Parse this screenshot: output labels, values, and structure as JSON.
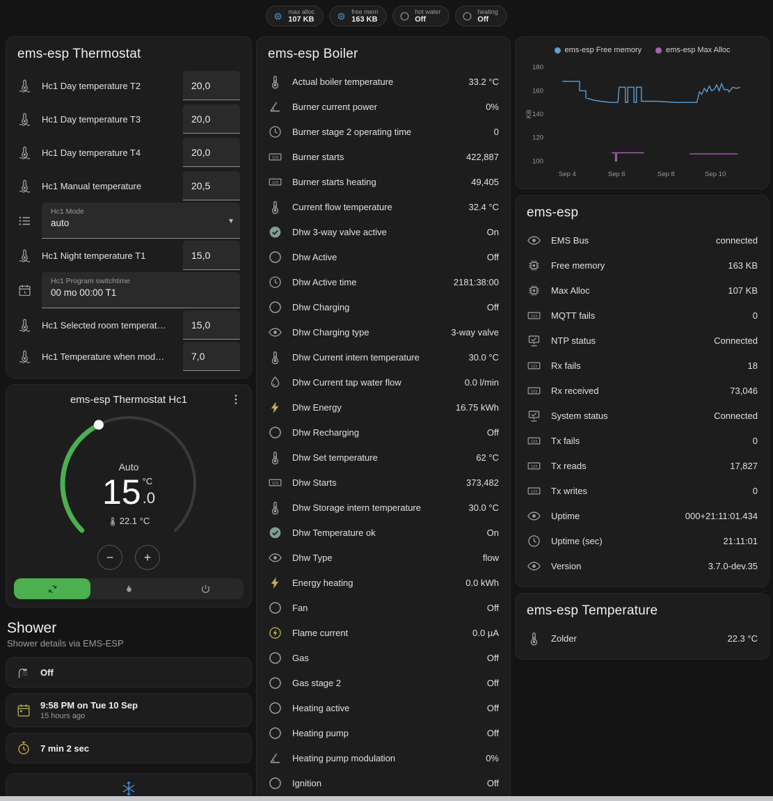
{
  "header": {
    "chips": [
      {
        "icon": "chip",
        "icon_color": "#4e93c8",
        "label": "max alloc",
        "value": "107 KB"
      },
      {
        "icon": "chip",
        "icon_color": "#4e93c8",
        "label": "free mem",
        "value": "163 KB"
      },
      {
        "icon": "circle",
        "icon_color": "#9da0a2",
        "label": "hot water",
        "value": "Off"
      },
      {
        "icon": "circle",
        "icon_color": "#9da0a2",
        "label": "heating",
        "value": "Off"
      }
    ]
  },
  "thermostat": {
    "title": "ems-esp Thermostat",
    "rows": [
      {
        "icon": "thermometer-water",
        "label": "Hc1 Day temperature T2",
        "value": "20,0"
      },
      {
        "icon": "thermometer-water",
        "label": "Hc1 Day temperature T3",
        "value": "20,0"
      },
      {
        "icon": "thermometer-water",
        "label": "Hc1 Day temperature T4",
        "value": "20,0"
      },
      {
        "icon": "thermometer-water",
        "label": "Hc1 Manual temperature",
        "value": "20,5"
      },
      {
        "icon": "list",
        "label": "Hc1 Mode",
        "value": "auto"
      },
      {
        "icon": "thermometer-water",
        "label": "Hc1 Night temperature T1",
        "value": "15,0"
      },
      {
        "icon": "calendar-clock",
        "label": "Hc1 Program switchtime",
        "value": "00 mo 00:00 T1"
      },
      {
        "icon": "thermometer-water",
        "label": "Hc1 Selected room temperat…",
        "value": "15,0"
      },
      {
        "icon": "thermometer-water",
        "label": "Hc1 Temperature when mod…",
        "value": "7,0"
      }
    ]
  },
  "thermostat_hc1": {
    "title": "ems-esp Thermostat Hc1",
    "mode": "Auto",
    "target_int": "15",
    "target_dec": ".0",
    "unit": "°C",
    "current": "22.1 °C"
  },
  "shower": {
    "heading": "Shower",
    "subtitle": "Shower details via EMS-ESP",
    "cards": [
      {
        "icon": "shower",
        "icon_color": "#9da0a2",
        "primary": "Off",
        "secondary": ""
      },
      {
        "icon": "calendar",
        "icon_color": "#a9aa4f",
        "primary": "9:58 PM on Tue 10 Sep",
        "secondary": "15 hours ago"
      },
      {
        "icon": "timer",
        "icon_color": "#cfa43e",
        "primary": "7 min 2 sec",
        "secondary": ""
      }
    ],
    "cold_icon": "snowflake",
    "cold_icon_color": "#4a90d9"
  },
  "boiler": {
    "title": "ems-esp Boiler",
    "rows": [
      {
        "icon": "thermometer",
        "label": "Actual boiler temperature",
        "value": "33.2 °C"
      },
      {
        "icon": "angle",
        "label": "Burner current power",
        "value": "0%"
      },
      {
        "icon": "clock",
        "label": "Burner stage 2 operating time",
        "value": "0"
      },
      {
        "icon": "counter",
        "label": "Burner starts",
        "value": "422,887"
      },
      {
        "icon": "counter",
        "label": "Burner starts heating",
        "value": "49,405"
      },
      {
        "icon": "thermometer",
        "label": "Current flow temperature",
        "value": "32.4 °C"
      },
      {
        "icon": "check-circle",
        "icon_color": "#7da08f",
        "label": "Dhw 3-way valve active",
        "value": "On"
      },
      {
        "icon": "circle",
        "label": "Dhw Active",
        "value": "Off"
      },
      {
        "icon": "clock",
        "label": "Dhw Active time",
        "value": "2181:38:00"
      },
      {
        "icon": "circle",
        "label": "Dhw Charging",
        "value": "Off"
      },
      {
        "icon": "eye",
        "label": "Dhw Charging type",
        "value": "3-way valve"
      },
      {
        "icon": "thermometer",
        "label": "Dhw Current intern temperature",
        "value": "30.0 °C"
      },
      {
        "icon": "water-pump",
        "label": "Dhw Current tap water flow",
        "value": "0.0 l/min"
      },
      {
        "icon": "flash",
        "icon_color": "#c9b04e",
        "label": "Dhw Energy",
        "value": "16.75 kWh"
      },
      {
        "icon": "circle",
        "label": "Dhw Recharging",
        "value": "Off"
      },
      {
        "icon": "thermometer",
        "label": "Dhw Set temperature",
        "value": "62 °C"
      },
      {
        "icon": "counter",
        "label": "Dhw Starts",
        "value": "373,482"
      },
      {
        "icon": "thermometer",
        "label": "Dhw Storage intern temperature",
        "value": "30.0 °C"
      },
      {
        "icon": "check-circle",
        "icon_color": "#7da08f",
        "label": "Dhw Temperature ok",
        "value": "On"
      },
      {
        "icon": "eye",
        "label": "Dhw Type",
        "value": "flow"
      },
      {
        "icon": "flash",
        "icon_color": "#c9b04e",
        "label": "Energy heating",
        "value": "0.0 kWh"
      },
      {
        "icon": "circle",
        "label": "Fan",
        "value": "Off"
      },
      {
        "icon": "current",
        "icon_color": "#c9b04e",
        "label": "Flame current",
        "value": "0.0 µA"
      },
      {
        "icon": "circle",
        "label": "Gas",
        "value": "Off"
      },
      {
        "icon": "circle",
        "label": "Gas stage 2",
        "value": "Off"
      },
      {
        "icon": "circle",
        "label": "Heating active",
        "value": "Off"
      },
      {
        "icon": "circle",
        "label": "Heating pump",
        "value": "Off"
      },
      {
        "icon": "angle",
        "label": "Heating pump modulation",
        "value": "0%"
      },
      {
        "icon": "circle",
        "label": "Ignition",
        "value": "Off"
      }
    ]
  },
  "ems": {
    "title": "ems-esp",
    "rows": [
      {
        "icon": "eye",
        "label": "EMS Bus",
        "value": "connected"
      },
      {
        "icon": "chip",
        "label": "Free memory",
        "value": "163 KB"
      },
      {
        "icon": "chip",
        "label": "Max Alloc",
        "value": "107 KB"
      },
      {
        "icon": "counter",
        "label": "MQTT fails",
        "value": "0"
      },
      {
        "icon": "network",
        "label": "NTP status",
        "value": "Connected"
      },
      {
        "icon": "counter",
        "label": "Rx fails",
        "value": "18"
      },
      {
        "icon": "counter",
        "label": "Rx received",
        "value": "73,046"
      },
      {
        "icon": "network",
        "label": "System status",
        "value": "Connected"
      },
      {
        "icon": "counter",
        "label": "Tx fails",
        "value": "0"
      },
      {
        "icon": "counter",
        "label": "Tx reads",
        "value": "17,827"
      },
      {
        "icon": "counter",
        "label": "Tx writes",
        "value": "0"
      },
      {
        "icon": "eye",
        "label": "Uptime",
        "value": "000+21:11:01.434"
      },
      {
        "icon": "clock",
        "label": "Uptime (sec)",
        "value": "21:11:01"
      },
      {
        "icon": "eye",
        "label": "Version",
        "value": "3.7.0-dev.35"
      }
    ]
  },
  "temperature_card": {
    "title": "ems-esp Temperature",
    "rows": [
      {
        "icon": "thermometer",
        "label": "Zolder",
        "value": "22.3 °C"
      }
    ]
  },
  "chart_data": {
    "type": "line",
    "title": "",
    "ylabel": "KB",
    "ylim": [
      96,
      184
    ],
    "yticks": [
      100,
      120,
      140,
      160,
      180
    ],
    "xlim": [
      3.2,
      11.6
    ],
    "xticks": [
      {
        "pos": 4,
        "label": "Sep 4"
      },
      {
        "pos": 6,
        "label": "Sep 6"
      },
      {
        "pos": 8,
        "label": "Sep 8"
      },
      {
        "pos": 10,
        "label": "Sep 10"
      }
    ],
    "legend_position": "top",
    "grid": false,
    "series": [
      {
        "name": "ems-esp Free memory",
        "color": "#5b9fd4",
        "segments": [
          [
            [
              3.8,
              168
            ],
            [
              4.5,
              168
            ],
            [
              4.5,
              160
            ],
            [
              4.75,
              160
            ],
            [
              4.75,
              154
            ],
            [
              5.05,
              152
            ],
            [
              5.35,
              151
            ],
            [
              5.75,
              150
            ],
            [
              6.05,
              150
            ],
            [
              6.1,
              163
            ],
            [
              6.35,
              163
            ],
            [
              6.35,
              150
            ],
            [
              6.45,
              150
            ],
            [
              6.45,
              163
            ],
            [
              6.7,
              163
            ],
            [
              6.7,
              150
            ],
            [
              6.8,
              150
            ],
            [
              6.8,
              163
            ],
            [
              7.0,
              163
            ],
            [
              7.0,
              151
            ],
            [
              7.6,
              151
            ],
            [
              8.4,
              150
            ],
            [
              9.25,
              150
            ],
            [
              9.35,
              159
            ],
            [
              9.45,
              157
            ],
            [
              9.55,
              162
            ],
            [
              9.65,
              159
            ],
            [
              9.75,
              164
            ],
            [
              9.85,
              160
            ],
            [
              9.95,
              161
            ],
            [
              10.05,
              165
            ],
            [
              10.15,
              160
            ],
            [
              10.25,
              166
            ],
            [
              10.35,
              161
            ],
            [
              10.5,
              161
            ],
            [
              10.55,
              159
            ],
            [
              10.7,
              163
            ],
            [
              10.85,
              162
            ],
            [
              11.0,
              163
            ]
          ]
        ]
      },
      {
        "name": "ems-esp Max Alloc",
        "color": "#a85fb4",
        "segments": [
          [
            [
              5.8,
              107
            ],
            [
              5.95,
              107
            ],
            [
              5.95,
              100
            ],
            [
              6.0,
              100
            ],
            [
              6.0,
              107
            ],
            [
              7.1,
              107
            ]
          ],
          [
            [
              8.95,
              106
            ],
            [
              10.9,
              106
            ]
          ]
        ]
      }
    ]
  }
}
